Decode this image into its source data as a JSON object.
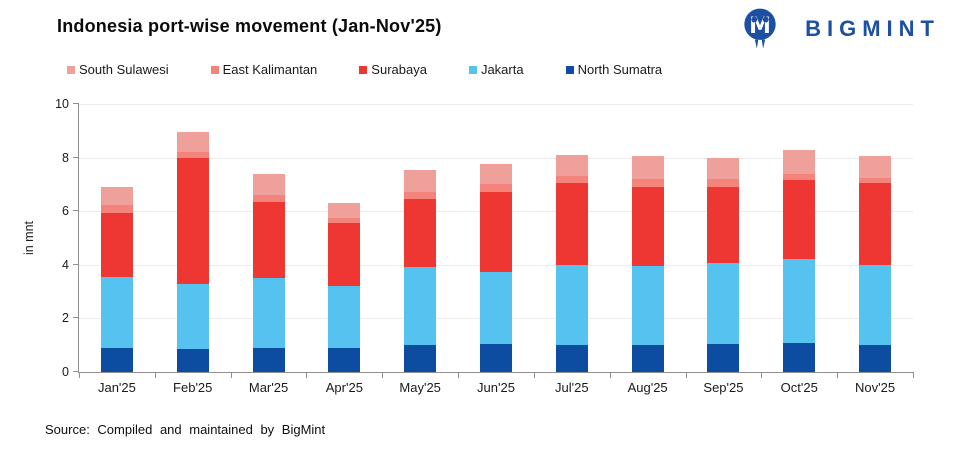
{
  "header": {
    "title": "Indonesia port-wise movement (Jan-Nov'25)",
    "brand": "BIGMINT",
    "brand_color": "#1D4FA3"
  },
  "legend": [
    {
      "label": "South Sulawesi",
      "color": "#F0A09B"
    },
    {
      "label": "East Kalimantan",
      "color": "#F4837B"
    },
    {
      "label": "Surabaya",
      "color": "#EE3733"
    },
    {
      "label": "Jakarta",
      "color": "#56C2F0"
    },
    {
      "label": "North Sumatra",
      "color": "#0C4DA2"
    }
  ],
  "chart_data": {
    "type": "bar",
    "stacked": true,
    "title": "Indonesia port-wise movement (Jan-Nov'25)",
    "xlabel": "",
    "ylabel": "in mnt",
    "ylim": [
      0,
      10
    ],
    "yticks": [
      0,
      2,
      4,
      6,
      8,
      10
    ],
    "grid": true,
    "legend_position": "top-left",
    "categories": [
      "Jan'25",
      "Feb'25",
      "Mar'25",
      "Apr'25",
      "May'25",
      "Jun'25",
      "Jul'25",
      "Aug'25",
      "Sep'25",
      "Oct'25",
      "Nov'25"
    ],
    "series": [
      {
        "name": "North Sumatra",
        "color": "#0C4DA2",
        "values": [
          0.9,
          0.85,
          0.9,
          0.9,
          1.0,
          1.05,
          1.0,
          1.0,
          1.05,
          1.1,
          1.0
        ]
      },
      {
        "name": "Jakarta",
        "color": "#56C2F0",
        "values": [
          2.65,
          2.45,
          2.6,
          2.3,
          2.9,
          2.7,
          3.0,
          2.95,
          3.0,
          3.1,
          3.0
        ]
      },
      {
        "name": "Surabaya",
        "color": "#EE3733",
        "values": [
          2.4,
          4.7,
          2.85,
          2.35,
          2.55,
          2.95,
          3.05,
          2.95,
          2.85,
          2.95,
          3.05
        ]
      },
      {
        "name": "East Kalimantan",
        "color": "#F4837B",
        "values": [
          0.3,
          0.2,
          0.25,
          0.2,
          0.25,
          0.3,
          0.25,
          0.3,
          0.3,
          0.25,
          0.2
        ]
      },
      {
        "name": "South Sulawesi",
        "color": "#F0A09B",
        "values": [
          0.65,
          0.75,
          0.8,
          0.55,
          0.85,
          0.75,
          0.8,
          0.85,
          0.8,
          0.9,
          0.8
        ]
      }
    ],
    "stack_totals": [
      6.9,
      8.95,
      7.4,
      6.3,
      7.55,
      7.75,
      8.1,
      8.05,
      8.0,
      8.3,
      8.05
    ]
  },
  "footer": {
    "source": "Source: Compiled and maintained by BigMint"
  }
}
